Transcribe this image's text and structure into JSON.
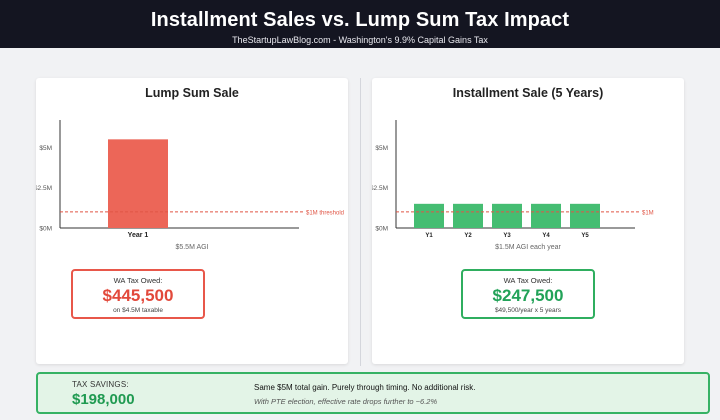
{
  "header": {
    "title": "Installment Sales vs. Lump Sum Tax Impact",
    "subtitle": "TheStartupLawBlog.com - Washington's 9.9% Capital Gains Tax"
  },
  "chart_data": [
    {
      "type": "bar",
      "title": "Lump Sum Sale",
      "categories": [
        "Year 1"
      ],
      "values": [
        5.5
      ],
      "unit": "$M",
      "ylim": [
        0,
        6.7
      ],
      "yticks": [
        {
          "v": 0,
          "label": "$0M"
        },
        {
          "v": 2.5,
          "label": "$2.5M"
        },
        {
          "v": 5,
          "label": "$5M"
        }
      ],
      "threshold": {
        "value": 1,
        "label": "$1M threshold"
      },
      "xlabel": "$5.5M AGI",
      "bar_color": "#ec6658",
      "threshold_color": "#e05545",
      "grid": false
    },
    {
      "type": "bar",
      "title": "Installment Sale (5 Years)",
      "categories": [
        "Y1",
        "Y2",
        "Y3",
        "Y4",
        "Y5"
      ],
      "values": [
        1.5,
        1.5,
        1.5,
        1.5,
        1.5
      ],
      "unit": "$M",
      "ylim": [
        0,
        6.7
      ],
      "yticks": [
        {
          "v": 0,
          "label": "$0M"
        },
        {
          "v": 2.5,
          "label": "$2.5M"
        },
        {
          "v": 5,
          "label": "$5M"
        }
      ],
      "threshold": {
        "value": 1,
        "label": "$1M"
      },
      "xlabel": "$1.5M AGI each year",
      "bar_color": "#45bd72",
      "threshold_color": "#e05545",
      "grid": false
    }
  ],
  "lump": {
    "owed_label": "WA Tax Owed:",
    "owed_amount": "$445,500",
    "owed_sub": "on $4.5M taxable"
  },
  "installment": {
    "owed_label": "WA Tax Owed:",
    "owed_amount": "$247,500",
    "owed_sub": "$49,500/year x 5 years"
  },
  "savings": {
    "label": "TAX SAVINGS:",
    "amount": "$198,000",
    "main": "Same $5M total gain. Purely through timing. No additional risk.",
    "note": "With PTE election, effective rate drops further to ~6.2%"
  }
}
